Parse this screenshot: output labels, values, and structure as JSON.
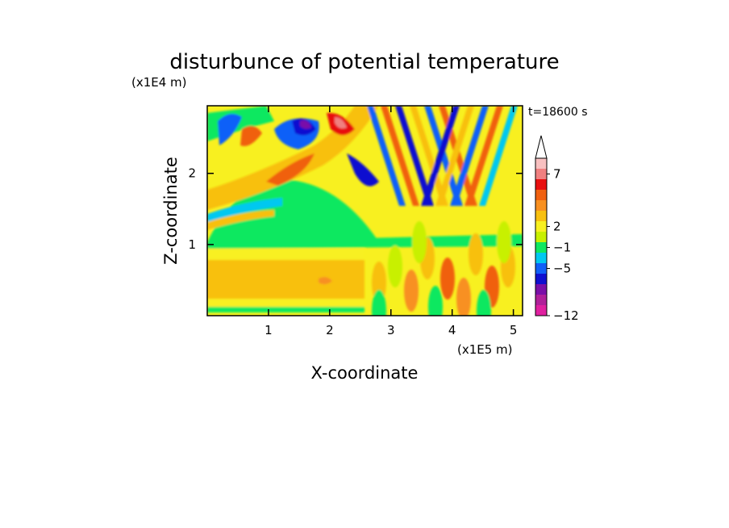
{
  "chart_data": {
    "type": "heatmap",
    "title": "disturbunce of potential temperature",
    "xlabel": "X-coordinate",
    "ylabel": "Z-coordinate",
    "x_unit": "(x1E5 m)",
    "y_unit": "(x1E4 m)",
    "time_label": "t=18600 s",
    "xlim": [
      0,
      5.15
    ],
    "ylim": [
      0,
      2.95
    ],
    "x_ticks": [
      "1",
      "2",
      "3",
      "4",
      "5"
    ],
    "y_ticks": [
      "1",
      "2"
    ],
    "x_tick_values": [
      1,
      2,
      3,
      4,
      5
    ],
    "y_tick_values": [
      1,
      2
    ],
    "colorbar": {
      "labels": [
        "7",
        "2",
        "-1",
        "-5",
        "-12"
      ],
      "levels": [
        -12,
        -5,
        -1,
        2,
        7
      ],
      "colors": [
        "#e020a0",
        "#b0209a",
        "#7a10a8",
        "#1010d0",
        "#1060f8",
        "#00c8f0",
        "#10e860",
        "#c8f000",
        "#f8f020",
        "#f8c010",
        "#f89020",
        "#f06010",
        "#e81010",
        "#f08080",
        "#f8c0c0"
      ],
      "extend": "max"
    },
    "grid": false,
    "legend": "colorbar-right"
  }
}
